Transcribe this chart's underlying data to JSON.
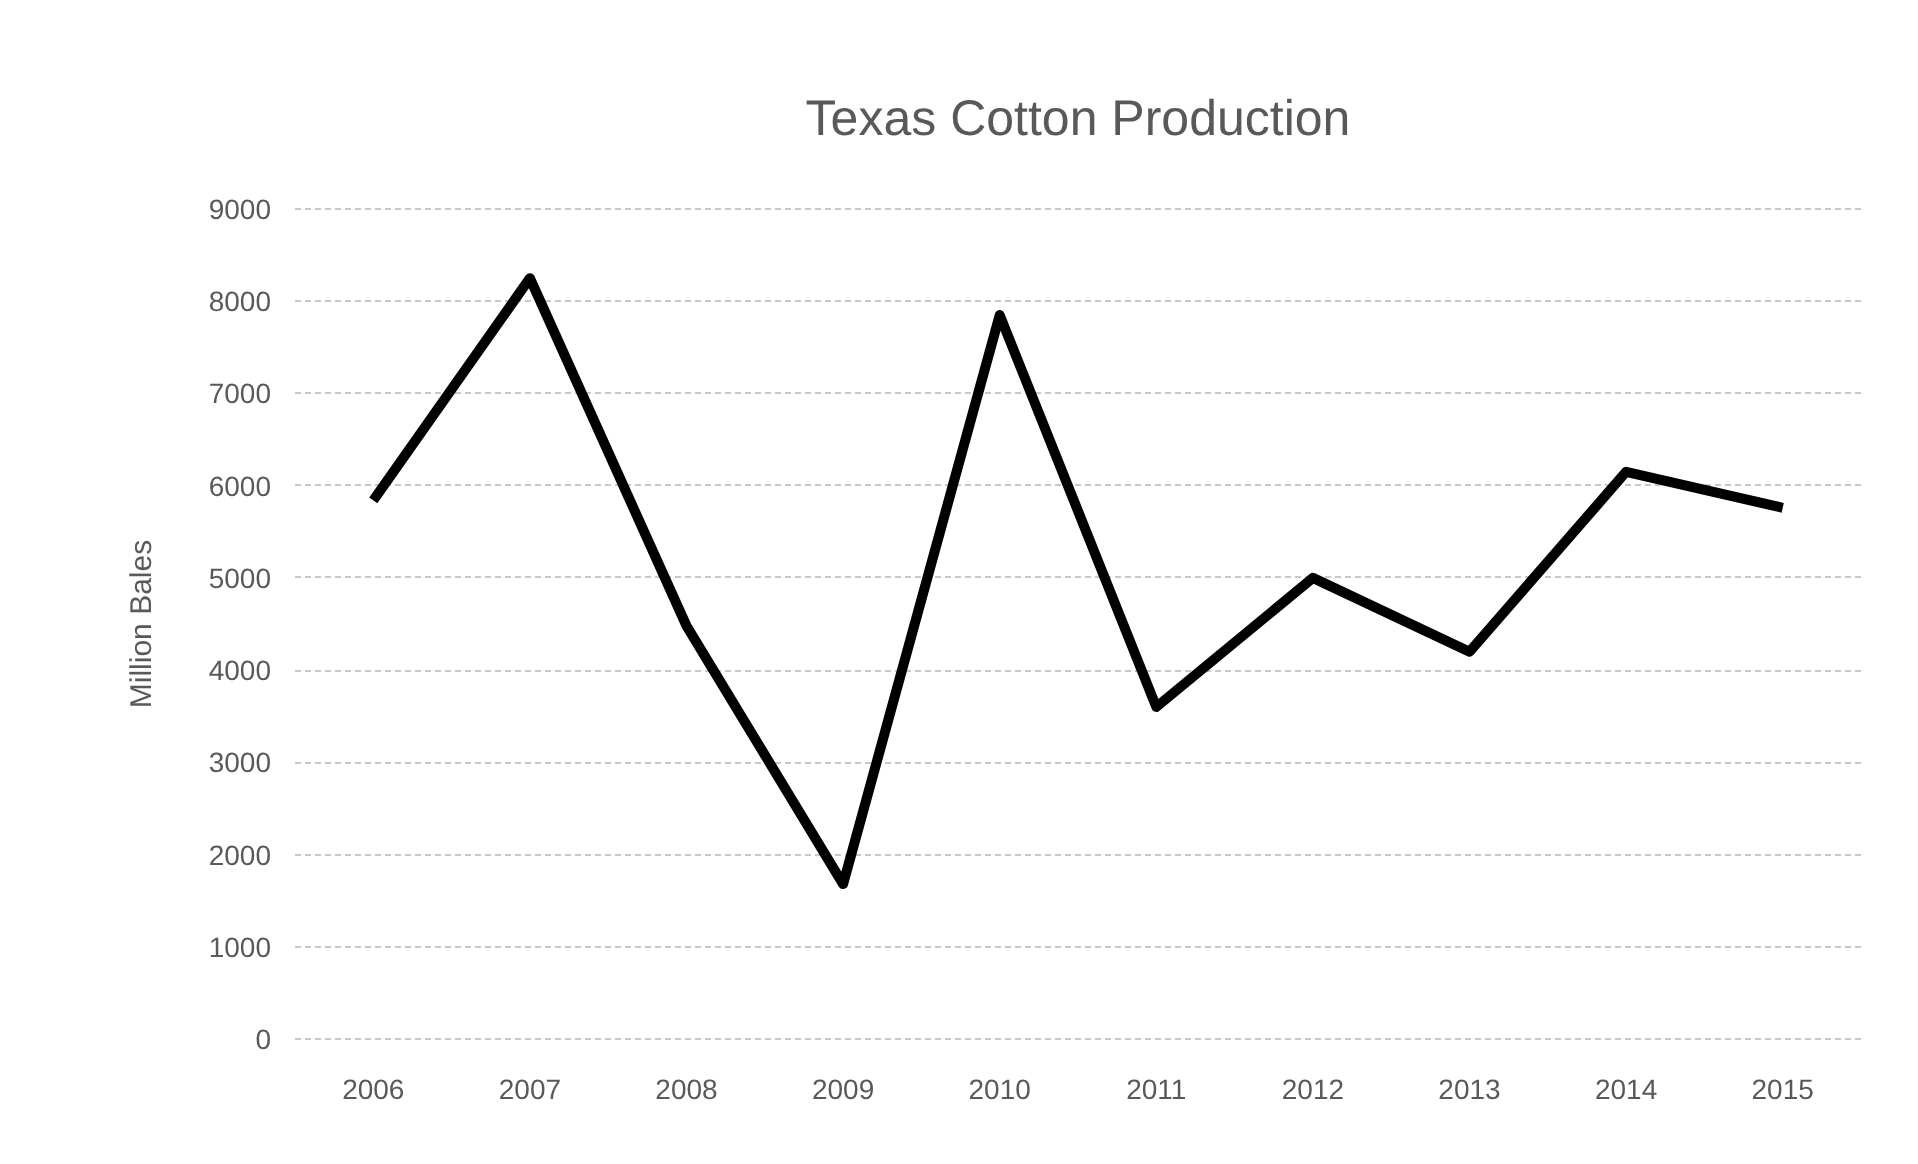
{
  "chart_data": {
    "type": "line",
    "title": "Texas Cotton Production",
    "ylabel": "Million Bales",
    "categories": [
      "2006",
      "2007",
      "2008",
      "2009",
      "2010",
      "2011",
      "2012",
      "2013",
      "2014",
      "2015"
    ],
    "series": [
      {
        "color": "#000000",
        "values": [
          5840,
          8250,
          4480,
          1680,
          7850,
          3600,
          5000,
          4200,
          6150,
          5760
        ]
      }
    ],
    "ylim": [
      0,
      9000
    ],
    "yticks": [
      0,
      1000,
      2000,
      3000,
      4000,
      5000,
      6000,
      7000,
      8000,
      9000
    ],
    "grid": "y"
  }
}
